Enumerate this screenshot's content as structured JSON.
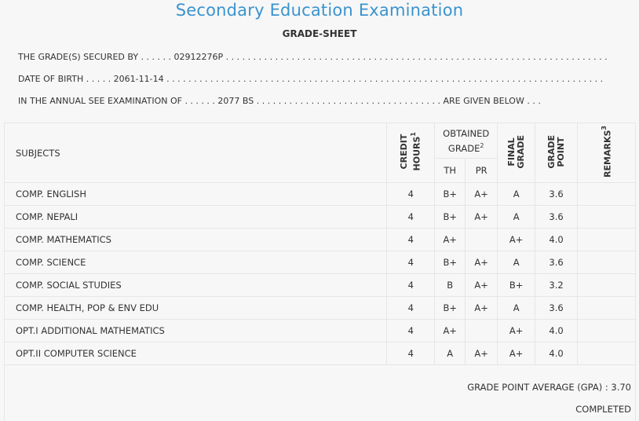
{
  "header": {
    "title": "Secondary Education Examination",
    "subtitle": "GRADE-SHEET"
  },
  "info": {
    "secured_by": "THE GRADE(S) SECURED BY . . . . . . 02912276P . . . . . . . . . . . . . . . . . . . . . . . . . . . . . . . . . . . . . . . . . . . . . . . . . . . . . . . . . . . . . . . . . . . . . .",
    "dob": "DATE OF BIRTH . . . . . 2061-11-14 . . . . . . . . . . . . . . . . . . . . . . . . . . . . . . . . . . . . . . . . . . . . . . . . . . . . . . . . . . . . . . . . . . . . . . . . . . . . . . . .",
    "exam": "IN THE ANNUAL SEE EXAMINATION OF . . . . . . 2077 BS . . . . . . . . . . . . . . . . . . . . . . . . . . . . . . . . . . ARE GIVEN BELOW . . ."
  },
  "table": {
    "col_subjects": "SUBJECTS",
    "col_credit_1": "CREDIT",
    "col_credit_2": "HOURS",
    "col_credit_sup": "1",
    "col_obtained_1": "OBTAINED",
    "col_obtained_2": "GRADE",
    "col_obtained_sup": "2",
    "col_th": "TH",
    "col_pr": "PR",
    "col_final_1": "FINAL",
    "col_final_2": "GRADE",
    "col_gp_1": "GRADE",
    "col_gp_2": "POINT",
    "col_remarks": "REMARKS",
    "col_remarks_sup": "3",
    "rows": [
      {
        "subject": "COMP. ENGLISH",
        "credit": "4",
        "th": "B+",
        "pr": "A+",
        "final": "A",
        "gp": "3.6",
        "remarks": ""
      },
      {
        "subject": "COMP. NEPALI",
        "credit": "4",
        "th": "B+",
        "pr": "A+",
        "final": "A",
        "gp": "3.6",
        "remarks": ""
      },
      {
        "subject": "COMP. MATHEMATICS",
        "credit": "4",
        "th": "A+",
        "pr": "",
        "final": "A+",
        "gp": "4.0",
        "remarks": ""
      },
      {
        "subject": "COMP. SCIENCE",
        "credit": "4",
        "th": "B+",
        "pr": "A+",
        "final": "A",
        "gp": "3.6",
        "remarks": ""
      },
      {
        "subject": "COMP. SOCIAL STUDIES",
        "credit": "4",
        "th": "B",
        "pr": "A+",
        "final": "B+",
        "gp": "3.2",
        "remarks": ""
      },
      {
        "subject": "COMP. HEALTH, POP & ENV EDU",
        "credit": "4",
        "th": "B+",
        "pr": "A+",
        "final": "A",
        "gp": "3.6",
        "remarks": ""
      },
      {
        "subject": "OPT.I ADDITIONAL MATHEMATICS",
        "credit": "4",
        "th": "A+",
        "pr": "",
        "final": "A+",
        "gp": "4.0",
        "remarks": ""
      },
      {
        "subject": "OPT.II COMPUTER SCIENCE",
        "credit": "4",
        "th": "A",
        "pr": "A+",
        "final": "A+",
        "gp": "4.0",
        "remarks": ""
      }
    ]
  },
  "footer": {
    "gpa": "GRADE POINT AVERAGE (GPA) : 3.70",
    "status": "COMPLETED"
  },
  "colors": {
    "title": "#3a93cf",
    "background": "#f7f7f7",
    "border": "#e6e6e6"
  }
}
